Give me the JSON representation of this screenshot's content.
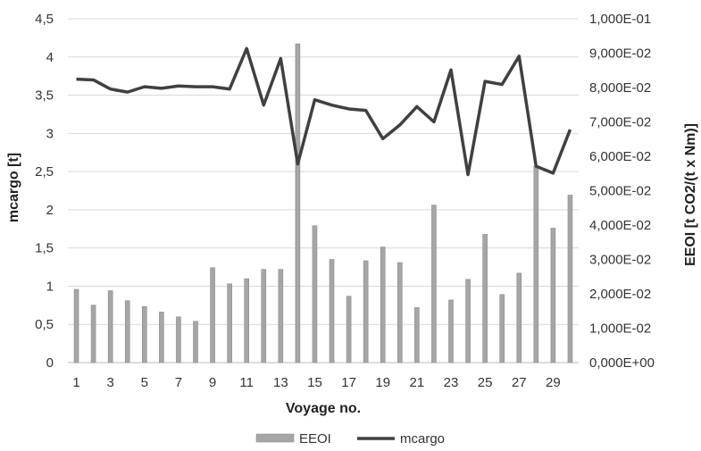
{
  "chart_data": {
    "type": "bar",
    "x": [
      1,
      2,
      3,
      4,
      5,
      6,
      7,
      8,
      9,
      10,
      11,
      12,
      13,
      14,
      15,
      16,
      17,
      18,
      19,
      20,
      21,
      22,
      23,
      24,
      25,
      26,
      27,
      28,
      29,
      30
    ],
    "x_tick_labels": [
      "1",
      "3",
      "5",
      "7",
      "9",
      "11",
      "13",
      "15",
      "17",
      "19",
      "21",
      "23",
      "25",
      "27",
      "29"
    ],
    "xlabel": "Voyage no.",
    "ylabel_left": "mcargo [t]",
    "ylabel_right": "EEOI  [t CO2/(t x Nm)]",
    "ylim_left": [
      0,
      4.5
    ],
    "ylim_right": [
      0,
      0.1
    ],
    "y_ticks_left": [
      "0",
      "0,5",
      "1",
      "1,5",
      "2",
      "2,5",
      "3",
      "3,5",
      "4",
      "4,5"
    ],
    "y_ticks_right": [
      "0,000E+00",
      "1,000E-02",
      "2,000E-02",
      "3,000E-02",
      "4,000E-02",
      "5,000E-02",
      "6,000E-02",
      "7,000E-02",
      "8,000E-02",
      "9,000E-02",
      "1,000E-01"
    ],
    "grid": true,
    "legend_position": "bottom",
    "series": [
      {
        "name": "EEOI",
        "kind": "bar",
        "axis": "right",
        "color": "#a6a6a6",
        "values": [
          0.0213,
          0.0167,
          0.0209,
          0.018,
          0.0163,
          0.0147,
          0.0133,
          0.012,
          0.0276,
          0.0229,
          0.0244,
          0.0271,
          0.0271,
          0.0927,
          0.0398,
          0.03,
          0.0193,
          0.0296,
          0.0336,
          0.0291,
          0.016,
          0.0458,
          0.0182,
          0.0242,
          0.0373,
          0.0198,
          0.026,
          0.0571,
          0.0391,
          0.0487
        ]
      },
      {
        "name": "mcargo",
        "kind": "line",
        "axis": "left",
        "color": "#404040",
        "values": [
          3.71,
          3.7,
          3.58,
          3.54,
          3.61,
          3.59,
          3.62,
          3.61,
          3.61,
          3.58,
          4.11,
          3.37,
          3.98,
          2.6,
          3.44,
          3.37,
          3.32,
          3.3,
          2.93,
          3.11,
          3.35,
          3.15,
          3.83,
          2.46,
          3.68,
          3.64,
          4.01,
          2.57,
          2.48,
          3.05
        ]
      }
    ]
  }
}
